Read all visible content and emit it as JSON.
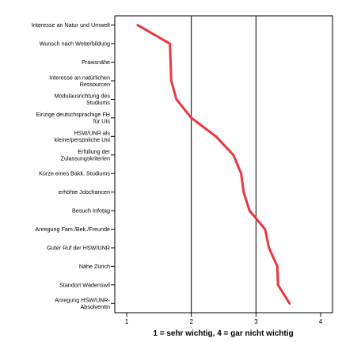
{
  "chart_data": {
    "type": "line",
    "orientation": "horizontal",
    "title": "",
    "xlabel": "1 = sehr wichtig, 4 = gar nicht wichtig",
    "ylabel": "",
    "xlim": [
      1,
      4
    ],
    "xticks": [
      "1",
      "2",
      "3",
      "4"
    ],
    "grid": "vertical lines at x = 2, 3",
    "line_color": "#e8383d",
    "categories": [
      [
        "Interesse an Natur und Umwelt"
      ],
      [
        "Wunsch nach Weiterbildung"
      ],
      [
        "Praxisnähe"
      ],
      [
        "Interesse an natürlichen",
        "Ressourcen"
      ],
      [
        "Modulausrichtung des",
        "Studiums"
      ],
      [
        "Einzige deutschsprachige FH",
        "für UIs"
      ],
      [
        "HSW/UNR als",
        "kleine/persönliche Uni"
      ],
      [
        "Erfüllung der",
        "Zulassungskriterien"
      ],
      [
        "Kürze eines Bakk. Studiums"
      ],
      [
        "erhöhte Jobchancen"
      ],
      [
        "Besuch Infotag"
      ],
      [
        "Anregung Fam./Bek./Freunde"
      ],
      [
        "Guter Ruf der HSW/UNR"
      ],
      [
        "Nähe Zürich"
      ],
      [
        "Standort Wädenswil"
      ],
      [
        "Anregung HSW/UNR-",
        "AbsolventIn"
      ]
    ],
    "values": [
      1.17,
      1.67,
      1.68,
      1.69,
      1.77,
      2.0,
      2.38,
      2.65,
      2.77,
      2.81,
      2.9,
      3.14,
      3.2,
      3.33,
      3.34,
      3.52
    ]
  }
}
